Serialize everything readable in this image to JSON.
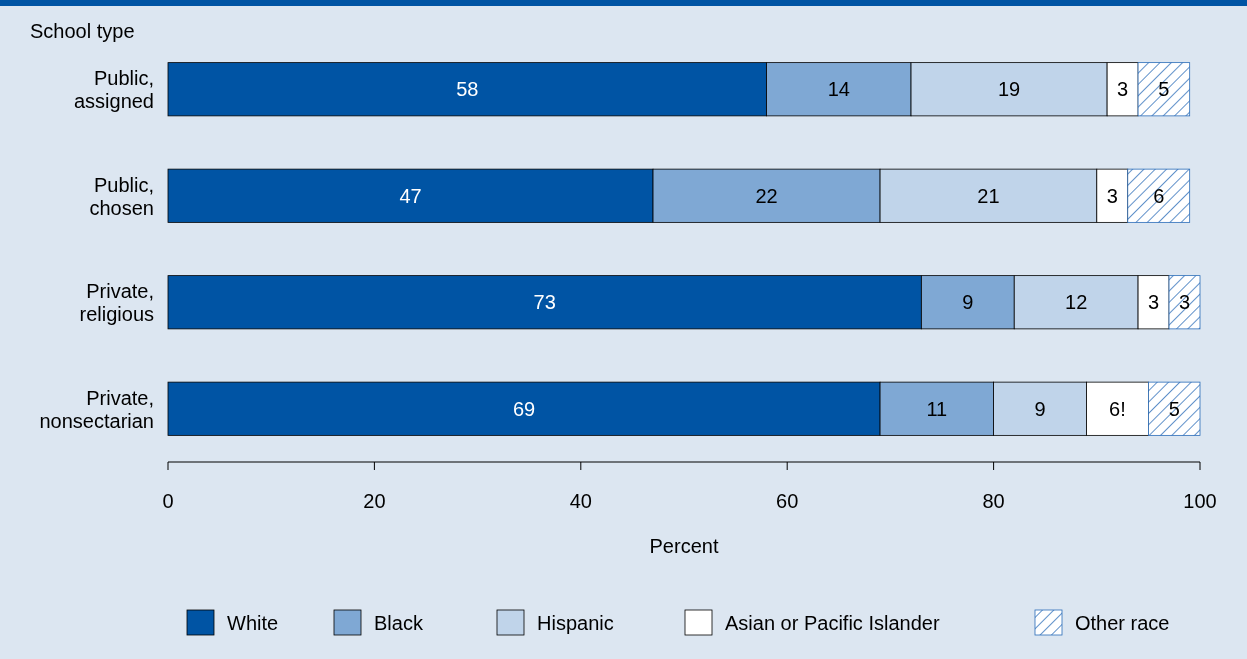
{
  "chart_data": {
    "type": "bar",
    "orientation": "horizontal",
    "stacked": true,
    "ylabel": "School type",
    "xlabel": "Percent",
    "categories": [
      "Public, assigned",
      "Public, chosen",
      "Private, religious",
      "Private, nonsectarian"
    ],
    "series": [
      {
        "name": "White",
        "color": "#0054a4",
        "values": [
          58,
          47,
          73,
          69
        ]
      },
      {
        "name": "Black",
        "color": "#7fa8d4",
        "values": [
          14,
          22,
          9,
          11
        ]
      },
      {
        "name": "Hispanic",
        "color": "#c0d4ea",
        "values": [
          19,
          21,
          12,
          9
        ]
      },
      {
        "name": "Asian or Pacific Islander",
        "color": "#ffffff",
        "values": [
          3,
          3,
          3,
          6
        ],
        "value_labels": [
          "3",
          "3",
          "3",
          "6!"
        ]
      },
      {
        "name": "Other race",
        "color": "#2a6cb8",
        "values": [
          5,
          6,
          3,
          5
        ]
      }
    ],
    "xlim": [
      0,
      100
    ],
    "xticks": [
      0,
      20,
      40,
      60,
      80,
      100
    ],
    "data_labels": true,
    "legend": "bottom"
  }
}
